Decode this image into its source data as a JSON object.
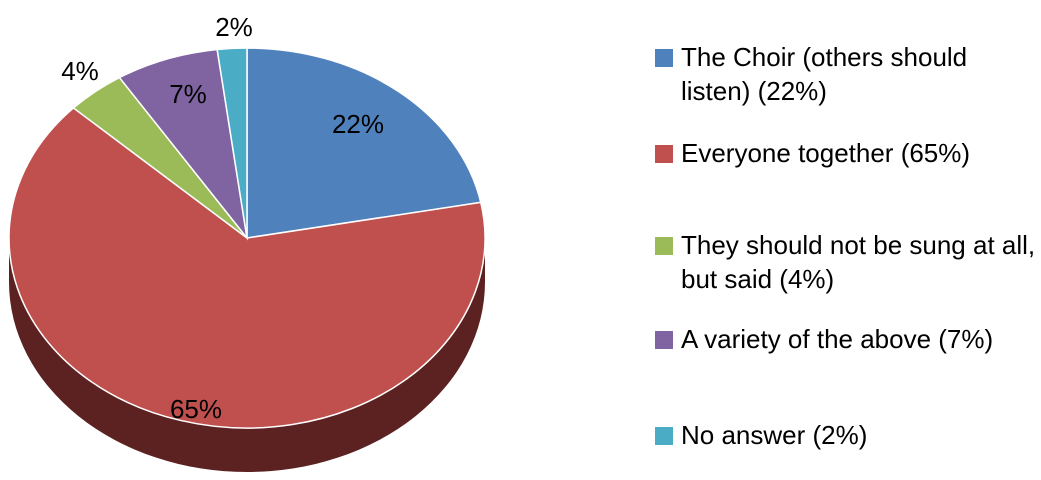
{
  "chart_data": {
    "type": "pie",
    "style": "3d",
    "title": "",
    "slices": [
      {
        "label": "The Choir (others should listen) (22%)",
        "value": 22,
        "data_label": "22%",
        "color": "#4F81BD",
        "side": "#385D8A"
      },
      {
        "label": "Everyone together (65%)",
        "value": 65,
        "data_label": "65%",
        "color": "#C0504D",
        "side": "#5C2221"
      },
      {
        "label": "They should not be sung at all, but said (4%)",
        "value": 4,
        "data_label": "4%",
        "color": "#9BBB59",
        "side": "#5F7530"
      },
      {
        "label": "A variety of the above (7%)",
        "value": 7,
        "data_label": "7%",
        "color": "#8064A2",
        "side": "#4D3B62"
      },
      {
        "label": "No answer (2%)",
        "value": 2,
        "data_label": "2%",
        "color": "#4BACC6",
        "side": "#2C6E80"
      }
    ],
    "legend_position": "right"
  }
}
